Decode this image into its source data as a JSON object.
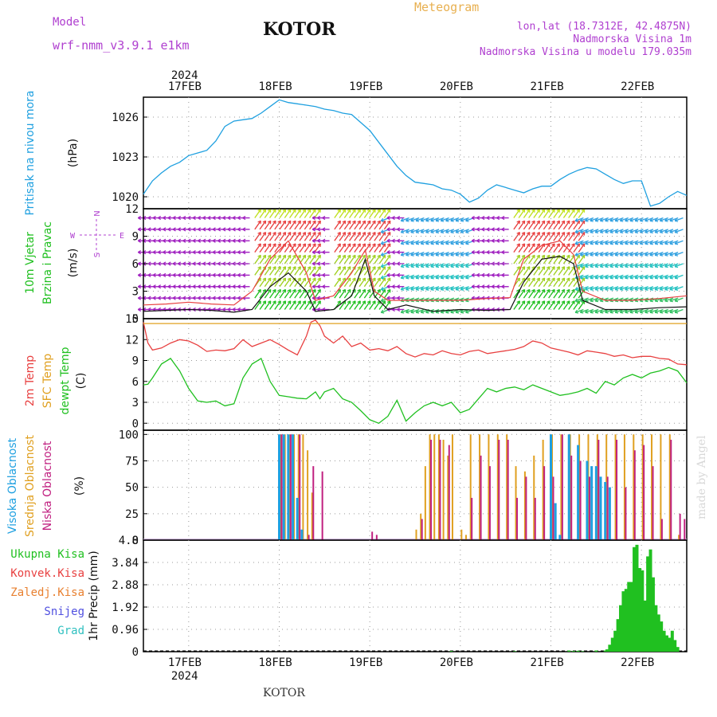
{
  "header": {
    "model_label": "Model",
    "model_name": "wrf-nmm_v3.9.1 e1km",
    "title": "KOTOR",
    "meteogram_label": "Meteogram",
    "lonlat": "lon,lat (18.7312E, 42.4875N)",
    "elevation": "Nadmorska Visina 1m",
    "model_elevation": "Nadmorska Visina u modelu 179.035m",
    "credit": "made by Angel",
    "footer": "KOTOR"
  },
  "colors": {
    "pressure": "#1fa0e0",
    "temp": "#e84040",
    "sfc_temp": "#e0a020",
    "dewpt": "#20c020",
    "cloud_high": "#1fa0e0",
    "cloud_mid": "#e0a020",
    "cloud_low": "#c02080",
    "precip": "#20c020",
    "wind_magenta": "#a020c0",
    "wind_arrow": "#b040d0",
    "header_purple": "#b040d0",
    "header_orange": "#e8b050"
  },
  "chart_data": [
    {
      "type": "line",
      "id": "pressure",
      "ylabel_lines": [
        "Pritisak na nivou mora",
        "(hPa)"
      ],
      "yticks": [
        1020,
        1023,
        1026
      ],
      "ylim": [
        1019.1,
        1027.5
      ],
      "x_unit": "days since 16FEB00",
      "xlim": [
        0.5,
        6.5
      ],
      "date_ticks": [
        "17FEB",
        "18FEB",
        "19FEB",
        "20FEB",
        "21FEB",
        "22FEB"
      ],
      "year_label": "2024",
      "x": [
        0.5,
        0.6,
        0.7,
        0.8,
        0.9,
        1.0,
        1.1,
        1.2,
        1.3,
        1.4,
        1.5,
        1.6,
        1.7,
        1.8,
        1.9,
        2.0,
        2.1,
        2.2,
        2.3,
        2.4,
        2.5,
        2.6,
        2.7,
        2.8,
        2.9,
        3.0,
        3.1,
        3.2,
        3.3,
        3.4,
        3.5,
        3.6,
        3.7,
        3.8,
        3.9,
        4.0,
        4.1,
        4.2,
        4.3,
        4.4,
        4.5,
        4.6,
        4.7,
        4.8,
        4.9,
        5.0,
        5.1,
        5.2,
        5.3,
        5.4,
        5.5,
        5.6,
        5.7,
        5.8,
        5.9,
        6.0,
        6.1,
        6.2,
        6.3,
        6.4,
        6.5
      ],
      "series": [
        {
          "values": [
            1020.2,
            1021.2,
            1021.8,
            1022.3,
            1022.6,
            1023.1,
            1023.3,
            1023.5,
            1024.2,
            1025.3,
            1025.7,
            1025.8,
            1025.9,
            1026.3,
            1026.8,
            1027.3,
            1027.1,
            1027.0,
            1026.9,
            1026.8,
            1026.6,
            1026.5,
            1026.3,
            1026.2,
            1025.6,
            1025.0,
            1024.1,
            1023.2,
            1022.3,
            1021.6,
            1021.1,
            1021.0,
            1020.9,
            1020.6,
            1020.5,
            1020.2,
            1019.6,
            1019.9,
            1020.5,
            1020.9,
            1020.7,
            1020.5,
            1020.3,
            1020.6,
            1020.8,
            1020.8,
            1021.3,
            1021.7,
            1022.0,
            1022.2,
            1022.1,
            1021.7,
            1021.3,
            1021.0,
            1021.2,
            1021.2,
            1019.3,
            1019.5,
            1020.0,
            1020.4,
            1020.1
          ]
        }
      ]
    },
    {
      "type": "heatmap",
      "id": "wind",
      "ylabel_lines": [
        "10m Vjetar",
        "Brzina i Pravac",
        "(m/s)"
      ],
      "compass": {
        "north": "N",
        "south": "S",
        "west": "W",
        "east": "E"
      },
      "yticks": [
        0,
        3,
        6,
        9,
        12
      ],
      "ylim": [
        0,
        12
      ],
      "x_unit": "days since 16FEB00",
      "xlim": [
        0.5,
        6.5
      ],
      "strong_wind_bands": [
        [
          1.7,
          2.4
        ],
        [
          2.6,
          3.2
        ],
        [
          4.55,
          5.35
        ]
      ],
      "moderate_wind_bands": [
        [
          3.0,
          3.25
        ],
        [
          3.4,
          4.2
        ],
        [
          5.35,
          6.5
        ]
      ],
      "x": [
        0.5,
        0.75,
        1.0,
        1.25,
        1.5,
        1.7,
        1.9,
        2.1,
        2.3,
        2.4,
        2.6,
        2.8,
        2.95,
        3.05,
        3.2,
        3.4,
        3.7,
        4.0,
        4.3,
        4.55,
        4.7,
        4.9,
        5.1,
        5.25,
        5.35,
        5.6,
        5.9,
        6.2,
        6.5
      ],
      "series": [
        {
          "name": "speed",
          "values": [
            0.8,
            0.9,
            1.0,
            0.9,
            0.7,
            1.0,
            3.5,
            5.0,
            3.0,
            0.8,
            1.0,
            2.5,
            6.5,
            2.5,
            1.0,
            1.5,
            0.8,
            1.0,
            0.9,
            1.0,
            4.0,
            6.5,
            6.8,
            6.0,
            2.0,
            1.0,
            1.0,
            1.2,
            1.3
          ]
        },
        {
          "name": "gust",
          "values": [
            1.5,
            1.6,
            1.8,
            1.6,
            1.5,
            3.0,
            6.5,
            8.5,
            5.0,
            2.0,
            2.5,
            5.0,
            7.5,
            3.0,
            2.0,
            2.0,
            2.0,
            2.0,
            2.2,
            2.3,
            6.5,
            8.0,
            8.5,
            7.0,
            3.0,
            2.0,
            2.0,
            2.2,
            2.5
          ]
        }
      ]
    },
    {
      "type": "line",
      "id": "temperature",
      "ylabel_lines": [
        "2m Temp",
        "SFC Temp",
        "dewpt Temp",
        "(C)"
      ],
      "yticks": [
        0,
        3,
        6,
        9,
        12,
        15
      ],
      "ylim": [
        -1,
        15
      ],
      "x_unit": "days since 16FEB00",
      "xlim": [
        0.5,
        6.5
      ],
      "x": [
        0.5,
        0.55,
        0.6,
        0.7,
        0.8,
        0.9,
        1.0,
        1.1,
        1.2,
        1.3,
        1.4,
        1.5,
        1.6,
        1.7,
        1.8,
        1.9,
        2.0,
        2.1,
        2.2,
        2.3,
        2.35,
        2.4,
        2.45,
        2.5,
        2.6,
        2.7,
        2.8,
        2.9,
        3.0,
        3.1,
        3.2,
        3.3,
        3.4,
        3.5,
        3.6,
        3.7,
        3.8,
        3.9,
        4.0,
        4.1,
        4.2,
        4.3,
        4.4,
        4.5,
        4.6,
        4.7,
        4.8,
        4.9,
        5.0,
        5.1,
        5.2,
        5.3,
        5.4,
        5.5,
        5.6,
        5.7,
        5.8,
        5.9,
        6.0,
        6.1,
        6.2,
        6.3,
        6.4,
        6.5
      ],
      "series": [
        {
          "name": "2m Temp",
          "values": [
            14.5,
            11.5,
            10.5,
            10.8,
            11.5,
            12.0,
            11.8,
            11.2,
            10.3,
            10.5,
            10.4,
            10.7,
            12.0,
            11.0,
            11.5,
            12.0,
            11.3,
            10.5,
            9.8,
            12.5,
            14.5,
            14.8,
            14.0,
            12.5,
            11.5,
            12.5,
            11.0,
            11.5,
            10.5,
            10.7,
            10.4,
            11.0,
            10.0,
            9.5,
            10.0,
            9.8,
            10.4,
            10.0,
            9.8,
            10.3,
            10.5,
            10.0,
            10.2,
            10.4,
            10.6,
            11.0,
            11.8,
            11.5,
            10.8,
            10.5,
            10.2,
            9.8,
            10.4,
            10.2,
            10.0,
            9.6,
            9.8,
            9.4,
            9.6,
            9.6,
            9.3,
            9.2,
            8.5,
            8.4
          ]
        },
        {
          "name": "SFC Temp",
          "values": [
            14.3,
            14.3,
            14.3,
            14.3,
            14.3,
            14.3,
            14.3,
            14.3,
            14.3,
            14.3,
            14.3,
            14.3,
            14.3,
            14.3,
            14.3,
            14.3,
            14.3,
            14.3,
            14.3,
            14.3,
            14.3,
            14.3,
            14.3,
            14.3,
            14.3,
            14.3,
            14.3,
            14.3,
            14.3,
            14.3,
            14.3,
            14.3,
            14.3,
            14.3,
            14.3,
            14.3,
            14.3,
            14.3,
            14.3,
            14.3,
            14.3,
            14.3,
            14.3,
            14.3,
            14.3,
            14.3,
            14.3,
            14.3,
            14.3,
            14.3,
            14.3,
            14.3,
            14.3,
            14.3,
            14.3,
            14.3,
            14.3,
            14.3,
            14.3,
            14.3,
            14.3,
            14.3,
            14.3,
            14.3
          ]
        },
        {
          "name": "dewpt Temp",
          "values": [
            5.5,
            5.6,
            6.5,
            8.5,
            9.3,
            7.5,
            5.0,
            3.2,
            3.0,
            3.2,
            2.5,
            2.8,
            6.5,
            8.5,
            9.3,
            6.0,
            4.0,
            3.8,
            3.6,
            3.5,
            4.0,
            4.5,
            3.5,
            4.5,
            5.0,
            3.5,
            3.0,
            1.8,
            0.5,
            0.0,
            1.0,
            3.3,
            0.3,
            1.5,
            2.5,
            3.0,
            2.5,
            3.0,
            1.5,
            2.0,
            3.5,
            5.0,
            4.5,
            5.0,
            5.2,
            4.8,
            5.5,
            5.0,
            4.5,
            4.0,
            4.2,
            4.5,
            5.0,
            4.3,
            6.0,
            5.5,
            6.5,
            7.0,
            6.5,
            7.2,
            7.5,
            8.0,
            7.5,
            5.8
          ]
        }
      ]
    },
    {
      "type": "bar",
      "id": "cloud",
      "ylabel_lines": [
        "Visoka Oblacnost",
        "Srednja Oblacnost",
        "Niska Oblacnost",
        "(%)"
      ],
      "yticks": [
        0,
        25,
        50,
        75,
        100
      ],
      "ylim": [
        0,
        104
      ],
      "x_unit": "days since 16FEB00",
      "xlim": [
        0.5,
        6.5
      ],
      "series": [
        {
          "name": "Visoka Oblacnost",
          "x": [
            2.0,
            2.05,
            2.1,
            2.15,
            2.2,
            2.25,
            5.0,
            5.05,
            5.1,
            5.2,
            5.3,
            5.4,
            5.45,
            5.5,
            5.55,
            5.6,
            5.65
          ],
          "values": [
            100,
            100,
            100,
            100,
            40,
            10,
            100,
            35,
            5,
            100,
            90,
            75,
            70,
            70,
            60,
            55,
            50
          ]
        },
        {
          "name": "Srednja Oblacnost",
          "x": [
            2.0,
            2.05,
            2.1,
            2.15,
            2.2,
            2.25,
            2.3,
            2.35,
            3.5,
            3.55,
            3.6,
            3.65,
            3.7,
            3.75,
            3.8,
            3.85,
            3.9,
            4.0,
            4.05,
            4.1,
            4.2,
            4.3,
            4.4,
            4.5,
            4.6,
            4.7,
            4.8,
            4.9,
            5.0,
            5.1,
            5.2,
            5.3,
            5.4,
            5.5,
            5.6,
            5.7,
            5.8,
            5.9,
            6.0,
            6.1,
            6.2,
            6.3,
            6.4
          ],
          "values": [
            100,
            100,
            100,
            100,
            100,
            100,
            85,
            45,
            10,
            25,
            70,
            100,
            100,
            100,
            95,
            80,
            100,
            10,
            5,
            100,
            100,
            100,
            100,
            100,
            70,
            65,
            80,
            95,
            100,
            100,
            100,
            100,
            100,
            100,
            100,
            100,
            100,
            100,
            100,
            100,
            100,
            100,
            5
          ]
        },
        {
          "name": "Niska Oblacnost",
          "x": [
            2.0,
            2.1,
            2.2,
            2.3,
            2.35,
            2.45,
            3.0,
            3.05,
            3.55,
            3.65,
            3.75,
            3.85,
            4.1,
            4.2,
            4.3,
            4.4,
            4.5,
            4.6,
            4.7,
            4.8,
            4.9,
            5.0,
            5.1,
            5.2,
            5.3,
            5.4,
            5.5,
            5.6,
            5.7,
            5.8,
            5.9,
            6.0,
            6.1,
            6.2,
            6.3,
            6.4,
            6.45
          ],
          "values": [
            100,
            100,
            100,
            5,
            70,
            65,
            8,
            5,
            20,
            95,
            95,
            90,
            40,
            80,
            70,
            95,
            95,
            40,
            60,
            40,
            70,
            60,
            100,
            80,
            75,
            60,
            95,
            60,
            95,
            50,
            85,
            90,
            70,
            20,
            95,
            25,
            20
          ]
        }
      ]
    },
    {
      "type": "bar",
      "id": "precip",
      "ylabel_lines": [
        "1hr Precip (mm)"
      ],
      "legend": [
        "Ukupna Kisa",
        "Konvek.Kisa",
        "Zaledj.Kisa",
        "Snijeg",
        "Grad"
      ],
      "legend_colors": [
        "#20c020",
        "#e84040",
        "#e88030",
        "#5050e0",
        "#30c0c0"
      ],
      "yticks": [
        0,
        0.96,
        1.92,
        2.88,
        3.84,
        4.8
      ],
      "ylim": [
        0,
        4.8
      ],
      "x_unit": "days since 16FEB00",
      "xlim": [
        0.5,
        6.5
      ],
      "series": [
        {
          "name": "Ukupna Kisa",
          "x": [
            3.9,
            4.6,
            5.2,
            5.25,
            5.3,
            5.35,
            5.5,
            5.6,
            5.62,
            5.65,
            5.68,
            5.71,
            5.74,
            5.77,
            5.8,
            5.83,
            5.86,
            5.89,
            5.92,
            5.95,
            5.98,
            6.01,
            6.04,
            6.07,
            6.1,
            6.13,
            6.16,
            6.19,
            6.22,
            6.25,
            6.28,
            6.31,
            6.34,
            6.37,
            6.4
          ],
          "values": [
            0.03,
            0.02,
            0.05,
            0.03,
            0.04,
            0.02,
            0.05,
            0.05,
            0.1,
            0.3,
            0.6,
            0.9,
            1.4,
            2.0,
            2.6,
            2.7,
            3.0,
            3.0,
            4.5,
            4.6,
            3.6,
            3.5,
            2.2,
            4.1,
            4.4,
            3.2,
            2.0,
            1.6,
            1.3,
            0.9,
            0.7,
            0.6,
            0.9,
            0.5,
            0.2
          ]
        }
      ]
    }
  ]
}
